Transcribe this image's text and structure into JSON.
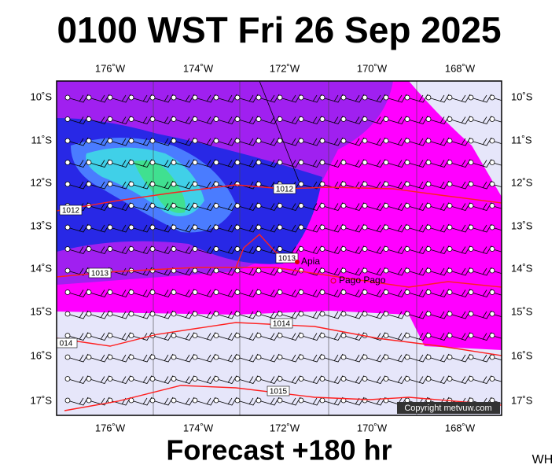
{
  "header": {
    "title": "0100 WST Fri 26 Sep 2025"
  },
  "map": {
    "lon_labels": [
      "176˚W",
      "174˚W",
      "172˚W",
      "170˚W",
      "168˚W"
    ],
    "lat_labels": [
      "10˚S",
      "11˚S",
      "12˚S",
      "13˚S",
      "14˚S",
      "15˚S",
      "16˚S",
      "17˚S"
    ],
    "isobar_labels": [
      "1012",
      "1012",
      "1013",
      "1013",
      "1014",
      "014",
      "1015"
    ],
    "places": [
      "Apia",
      "Pago Pago"
    ],
    "copyright": "Copyright metvuw.com"
  },
  "footer": {
    "forecast": "Forecast +180 hr",
    "credit": "WH"
  }
}
